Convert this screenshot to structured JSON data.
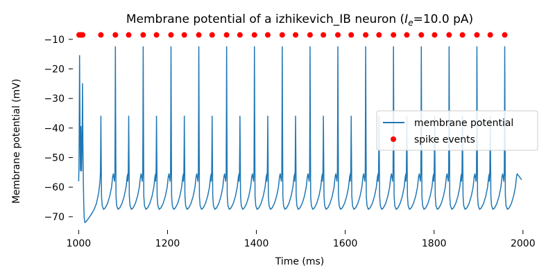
{
  "chart_data": {
    "type": "line",
    "title_prefix": "Membrane potential of a izhikevich_IB neuron (",
    "title_var": "I",
    "title_sub": "e",
    "title_suffix": "=10.0 pA)",
    "xlabel": "Time (ms)",
    "ylabel": "Membrane potential (mV)",
    "xlim": [
      990,
      2005
    ],
    "ylim": [
      -74,
      -7
    ],
    "xticks": [
      1000,
      1200,
      1400,
      1600,
      1800,
      2000
    ],
    "yticks": [
      -70,
      -60,
      -50,
      -40,
      -30,
      -20,
      -10
    ],
    "ytick_labels": [
      "−70",
      "−60",
      "−50",
      "−40",
      "−30",
      "−20",
      "−10"
    ],
    "grid": false,
    "legend_position": "right",
    "initial_burst": [
      [
        1000.0,
        -58.0
      ],
      [
        1000.5,
        -54.0
      ],
      [
        1001.0,
        -46.0
      ],
      [
        1001.5,
        -33.0
      ],
      [
        1002.0,
        -15.5
      ],
      [
        1002.6,
        -30.0
      ],
      [
        1003.3,
        -46.0
      ],
      [
        1004.0,
        -54.5
      ],
      [
        1004.6,
        -48.0
      ],
      [
        1005.1,
        -39.5
      ],
      [
        1005.8,
        -47.0
      ],
      [
        1006.6,
        -54.5
      ],
      [
        1007.3,
        -49.0
      ],
      [
        1008.0,
        -39.0
      ],
      [
        1008.6,
        -25.0
      ],
      [
        1009.5,
        -45.0
      ],
      [
        1010.5,
        -58.0
      ],
      [
        1011.5,
        -66.0
      ],
      [
        1012.5,
        -70.5
      ],
      [
        1014.0,
        -72.0
      ],
      [
        1017.0,
        -71.6
      ],
      [
        1022.0,
        -70.6
      ],
      [
        1028.0,
        -69.3
      ],
      [
        1034.0,
        -67.8
      ],
      [
        1040.0,
        -65.5
      ],
      [
        1045.0,
        -62.0
      ],
      [
        1048.0,
        -58.0
      ]
    ],
    "periodic": {
      "first_small_spike": 1050,
      "small_spike_peak": -36,
      "big_spike_peak": -12.5,
      "period": 62.6,
      "small_offset": 32.6,
      "last_spike": 1965,
      "end_time": 1997,
      "end_value": -57.5,
      "trough": -67.5,
      "notch": -55.5
    },
    "series": [
      {
        "name": "membrane potential",
        "color": "#1f77b4",
        "kind": "line"
      },
      {
        "name": "spike events",
        "color": "#ff0000",
        "kind": "marker"
      }
    ],
    "spike_events": {
      "y": -8.5,
      "burst_x": [
        1001,
        1003,
        1005,
        1007,
        1009
      ],
      "note_periodic": "one marker per periodic spike"
    }
  }
}
